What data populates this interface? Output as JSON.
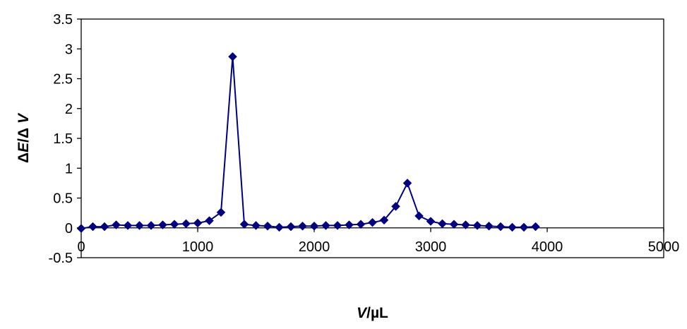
{
  "chart_data": {
    "type": "scatter",
    "title": "",
    "xlabel": "V/µL",
    "xlabel_parts": {
      "italic": "V",
      "rest": "/µL"
    },
    "ylabel": "ΔE/ΔV",
    "ylabel_parts": [
      "Δ",
      "E",
      "/Δ ",
      "V"
    ],
    "xlim": [
      0,
      5000
    ],
    "ylim": [
      -0.5,
      3.5
    ],
    "x_ticks": [
      0,
      1000,
      2000,
      3000,
      4000,
      5000
    ],
    "x_tick_labels": [
      "0",
      "1000",
      "2000",
      "3000",
      "4000",
      "5000"
    ],
    "y_ticks": [
      -0.5,
      0,
      0.5,
      1,
      1.5,
      2,
      2.5,
      3,
      3.5
    ],
    "y_tick_labels": [
      "-0.5",
      "0",
      "0.5",
      "1",
      "1.5",
      "2",
      "2.5",
      "3",
      "3.5"
    ],
    "grid": false,
    "legend": "none",
    "marker": "diamond",
    "line_connected": true,
    "series_color": "#000080",
    "series": [
      {
        "x": [
          0,
          100,
          200,
          300,
          400,
          500,
          600,
          700,
          800,
          900,
          1000,
          1100,
          1200,
          1300,
          1400,
          1500,
          1600,
          1700,
          1800,
          1900,
          2000,
          2100,
          2200,
          2300,
          2400,
          2500,
          2600,
          2700,
          2800,
          2900,
          3000,
          3100,
          3200,
          3300,
          3400,
          3500,
          3600,
          3700,
          3800,
          3900
        ],
        "y": [
          -0.01,
          0.02,
          0.02,
          0.05,
          0.04,
          0.04,
          0.04,
          0.05,
          0.06,
          0.07,
          0.08,
          0.12,
          0.26,
          2.87,
          0.06,
          0.04,
          0.03,
          0.01,
          0.02,
          0.03,
          0.03,
          0.04,
          0.04,
          0.05,
          0.06,
          0.09,
          0.13,
          0.36,
          0.75,
          0.2,
          0.11,
          0.07,
          0.06,
          0.05,
          0.04,
          0.03,
          0.02,
          0.01,
          0.01,
          0.02
        ]
      }
    ]
  }
}
